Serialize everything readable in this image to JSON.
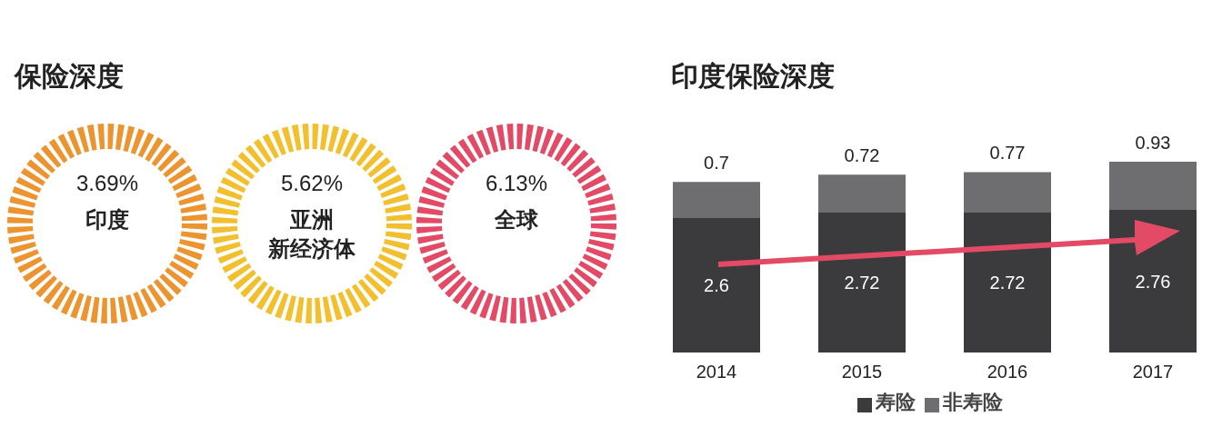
{
  "chart_data": [
    {
      "type": "other",
      "title": "保险深度",
      "categories": [
        "印度",
        "亚洲新经济体",
        "全球"
      ],
      "value_labels": [
        "3.69%",
        "5.62%",
        "6.13%"
      ],
      "colors": [
        "#ec9430",
        "#f2c02e",
        "#e34a65"
      ]
    },
    {
      "type": "bar",
      "title": "印度保险深度",
      "categories": [
        "2014",
        "2015",
        "2016",
        "2017"
      ],
      "stacked": true,
      "data_labels": true,
      "tick_labels": "x",
      "legend": "bottom",
      "series": [
        {
          "name": "寿险",
          "color": "#3b3a3c",
          "values": [
            2.6,
            2.72,
            2.72,
            2.76
          ]
        },
        {
          "name": "非寿险",
          "color": "#6e6d6f",
          "values": [
            0.7,
            0.72,
            0.77,
            0.93
          ]
        }
      ]
    }
  ]
}
